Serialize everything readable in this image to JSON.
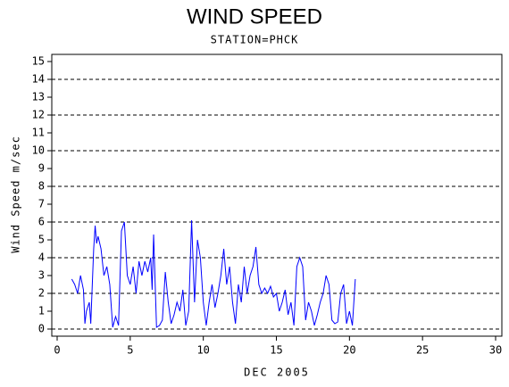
{
  "chart_data": {
    "type": "line",
    "title": "WIND SPEED",
    "subtitle": "STATION=PHCK",
    "x_label": "DEC 2005",
    "y_label": "Wind Speed m/sec",
    "xlim": [
      0,
      30
    ],
    "xticks": [
      0,
      5,
      10,
      15,
      20,
      25,
      30
    ],
    "ylim": [
      0,
      15
    ],
    "yticks": [
      0,
      1,
      2,
      3,
      4,
      5,
      6,
      7,
      8,
      9,
      10,
      11,
      12,
      13,
      14,
      15
    ],
    "gridlines": [
      0,
      2,
      4,
      6,
      8,
      10,
      12,
      14
    ],
    "series": [
      {
        "color": "#0000ff",
        "x": [
          1.0,
          1.2,
          1.4,
          1.6,
          1.8,
          1.9,
          2.0,
          2.2,
          2.3,
          2.5,
          2.6,
          2.7,
          2.8,
          3.0,
          3.2,
          3.4,
          3.6,
          3.8,
          4.0,
          4.2,
          4.4,
          4.6,
          4.8,
          5.0,
          5.2,
          5.4,
          5.6,
          5.8,
          6.0,
          6.2,
          6.4,
          6.5,
          6.6,
          6.8,
          7.0,
          7.2,
          7.4,
          7.6,
          7.8,
          8.0,
          8.2,
          8.4,
          8.6,
          8.8,
          9.0,
          9.2,
          9.4,
          9.6,
          9.8,
          10.0,
          10.2,
          10.4,
          10.6,
          10.8,
          11.0,
          11.2,
          11.4,
          11.6,
          11.8,
          12.0,
          12.2,
          12.4,
          12.6,
          12.8,
          13.0,
          13.2,
          13.4,
          13.6,
          13.8,
          14.0,
          14.2,
          14.4,
          14.6,
          14.8,
          15.0,
          15.2,
          15.4,
          15.6,
          15.8,
          16.0,
          16.2,
          16.4,
          16.6,
          16.8,
          17.0,
          17.2,
          17.4,
          17.6,
          17.8,
          18.0,
          18.2,
          18.4,
          18.6,
          18.8,
          19.0,
          19.2,
          19.4,
          19.6,
          19.8,
          20.0,
          20.2,
          20.4
        ],
        "values": [
          2.8,
          2.5,
          2.0,
          3.0,
          2.2,
          0.3,
          1.0,
          1.5,
          0.3,
          4.5,
          5.8,
          4.8,
          5.2,
          4.5,
          3.0,
          3.5,
          2.5,
          0.1,
          0.7,
          0.2,
          5.5,
          6.0,
          3.0,
          2.5,
          3.5,
          2.0,
          3.8,
          3.0,
          3.8,
          3.2,
          4.0,
          2.2,
          5.3,
          0.1,
          0.2,
          0.5,
          3.2,
          1.5,
          0.3,
          0.8,
          1.5,
          1.0,
          2.2,
          0.2,
          1.0,
          6.1,
          1.5,
          5.0,
          4.0,
          1.5,
          0.2,
          1.5,
          2.5,
          1.2,
          2.0,
          3.0,
          4.5,
          2.5,
          3.5,
          1.5,
          0.3,
          2.5,
          1.5,
          3.5,
          2.0,
          3.0,
          3.5,
          4.6,
          2.5,
          2.0,
          2.3,
          2.0,
          2.4,
          1.8,
          2.0,
          1.0,
          1.5,
          2.2,
          0.8,
          1.5,
          0.2,
          3.5,
          4.0,
          3.5,
          0.5,
          1.5,
          1.0,
          0.2,
          0.8,
          1.5,
          2.0,
          3.0,
          2.5,
          0.5,
          0.3,
          0.4,
          2.0,
          2.5,
          0.3,
          1.0,
          0.2,
          2.8
        ]
      }
    ]
  }
}
